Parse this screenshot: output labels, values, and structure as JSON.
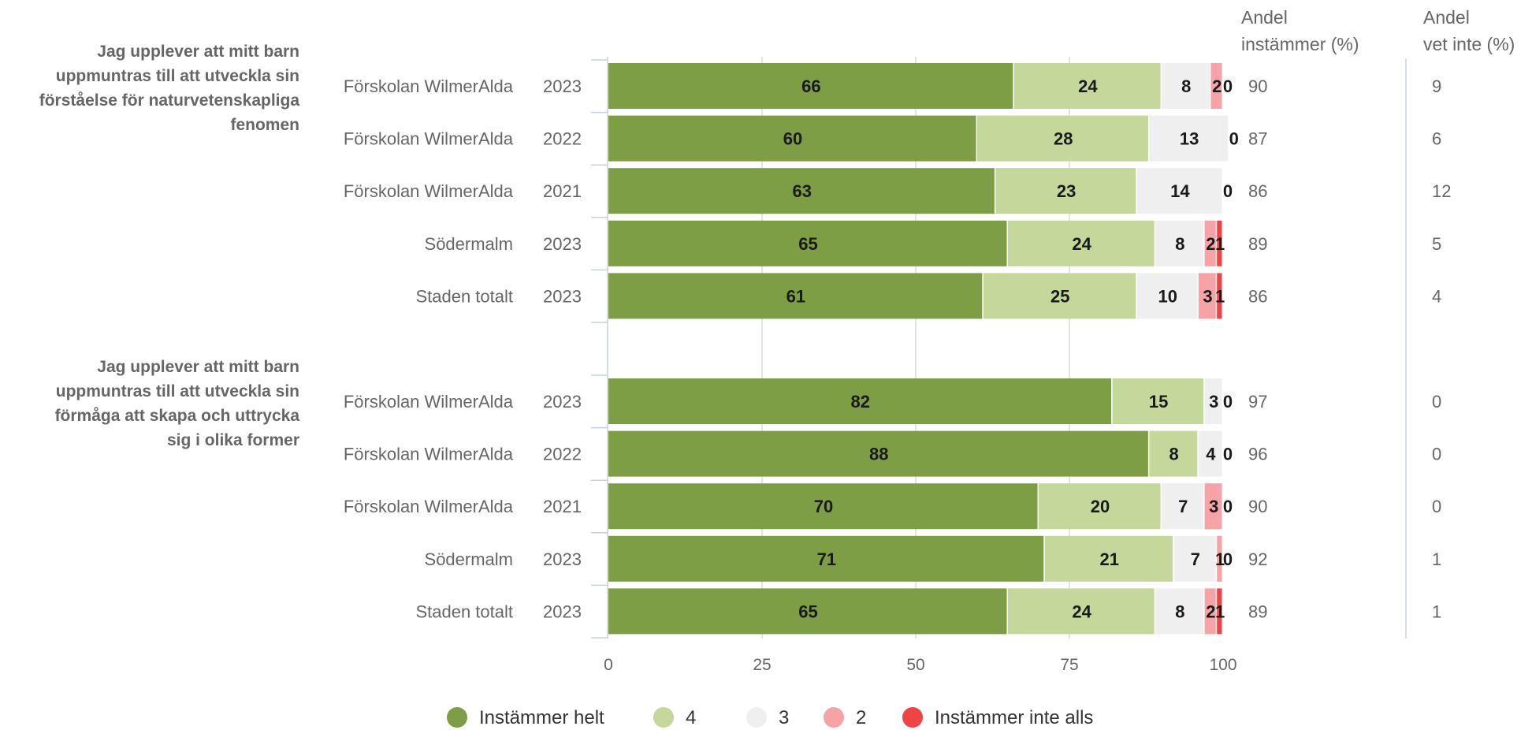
{
  "chart_data": {
    "type": "bar",
    "orientation": "horizontal",
    "stacked": true,
    "xlim": [
      0,
      100
    ],
    "x_ticks": [
      "0",
      "25",
      "50",
      "75",
      "100"
    ],
    "grid": true,
    "legend_position": "bottom",
    "series": [
      {
        "name": "Instämmer helt",
        "color": "#7e9e45"
      },
      {
        "name": "4",
        "color": "#c4d89c"
      },
      {
        "name": "3",
        "color": "#efefef"
      },
      {
        "name": "2",
        "color": "#f5a3a6"
      },
      {
        "name": "Instämmer inte alls",
        "color": "#f04444"
      }
    ],
    "columns": {
      "agree_header_line1": "Andel",
      "agree_header_line2": "instämmer (%)",
      "dontknow_header_line1": "Andel",
      "dontknow_header_line2": "vet inte (%)"
    },
    "groups": [
      {
        "question_lines": [
          "Jag upplever att mitt barn",
          "uppmuntras till att utveckla sin",
          "förståelse för naturvetenskapliga",
          "fenomen"
        ],
        "rows": [
          {
            "unit": "Förskolan WilmerAlda",
            "year": "2023",
            "values": [
              66,
              24,
              8,
              2,
              0
            ],
            "labels": [
              "66",
              "24",
              "8",
              "2",
              "0"
            ],
            "agree": "90",
            "dont_know": "9"
          },
          {
            "unit": "Förskolan WilmerAlda",
            "year": "2022",
            "values": [
              60,
              28,
              13,
              0,
              0
            ],
            "labels": [
              "60",
              "28",
              "13",
              "0",
              ""
            ],
            "agree": "87",
            "dont_know": "6"
          },
          {
            "unit": "Förskolan WilmerAlda",
            "year": "2021",
            "values": [
              63,
              23,
              14,
              0,
              0
            ],
            "labels": [
              "63",
              "23",
              "14",
              "0",
              ""
            ],
            "agree": "86",
            "dont_know": "12"
          },
          {
            "unit": "Södermalm",
            "year": "2023",
            "values": [
              65,
              24,
              8,
              2,
              1
            ],
            "labels": [
              "65",
              "24",
              "8",
              "2",
              "1"
            ],
            "agree": "89",
            "dont_know": "5"
          },
          {
            "unit": "Staden totalt",
            "year": "2023",
            "values": [
              61,
              25,
              10,
              3,
              1
            ],
            "labels": [
              "61",
              "25",
              "10",
              "3",
              "1"
            ],
            "agree": "86",
            "dont_know": "4"
          }
        ]
      },
      {
        "question_lines": [
          "Jag upplever att mitt barn",
          "uppmuntras till att utveckla sin",
          "förmåga att skapa och uttrycka",
          "sig i olika former"
        ],
        "rows": [
          {
            "unit": "Förskolan WilmerAlda",
            "year": "2023",
            "values": [
              82,
              15,
              3,
              0,
              0
            ],
            "labels": [
              "82",
              "15",
              "3",
              "0",
              ""
            ],
            "agree": "97",
            "dont_know": "0"
          },
          {
            "unit": "Förskolan WilmerAlda",
            "year": "2022",
            "values": [
              88,
              8,
              4,
              0,
              0
            ],
            "labels": [
              "88",
              "8",
              "4",
              "0",
              ""
            ],
            "agree": "96",
            "dont_know": "0"
          },
          {
            "unit": "Förskolan WilmerAlda",
            "year": "2021",
            "values": [
              70,
              20,
              7,
              3,
              0
            ],
            "labels": [
              "70",
              "20",
              "7",
              "3",
              "0"
            ],
            "agree": "90",
            "dont_know": "0"
          },
          {
            "unit": "Södermalm",
            "year": "2023",
            "values": [
              71,
              21,
              7,
              1,
              0
            ],
            "labels": [
              "71",
              "21",
              "7",
              "1",
              "0"
            ],
            "agree": "92",
            "dont_know": "1"
          },
          {
            "unit": "Staden totalt",
            "year": "2023",
            "values": [
              65,
              24,
              8,
              2,
              1
            ],
            "labels": [
              "65",
              "24",
              "8",
              "2",
              "1"
            ],
            "agree": "89",
            "dont_know": "1"
          }
        ]
      }
    ]
  }
}
